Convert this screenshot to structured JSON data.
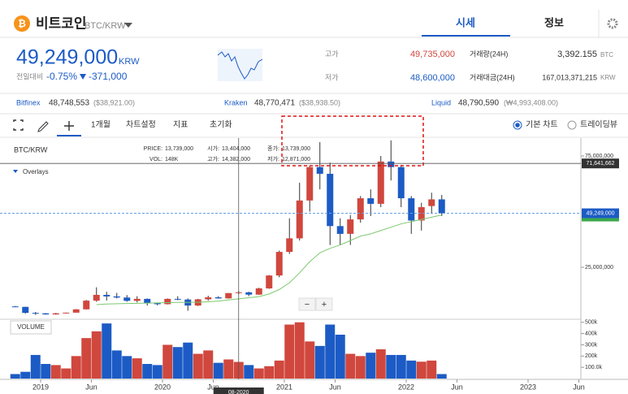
{
  "header": {
    "coin": "비트코인",
    "pair": "BTC/KRW",
    "tabs": [
      "시세",
      "정보"
    ]
  },
  "summary": {
    "price": "49,249,000",
    "unit": "KRW",
    "change_label": "전일대비",
    "change_pct": "-0.75%",
    "change_amt": "-371,000",
    "stats": [
      {
        "label": "고가",
        "value": "49,735,000"
      },
      {
        "label": "저가",
        "value": "48,600,000"
      },
      {
        "label": "거래량(24H)",
        "value": "3,392.155",
        "unit": "BTC"
      },
      {
        "label": "거래대금(24H)",
        "value": "167,013,371,215",
        "unit": "KRW"
      }
    ]
  },
  "exchanges": [
    {
      "name": "Bitfinex",
      "price": "48,748,553",
      "usd": "($38,921.00)"
    },
    {
      "name": "Kraken",
      "price": "48,770,471",
      "usd": "($38,938.50)"
    },
    {
      "name": "Liquid",
      "price": "48,790,590",
      "usd": "(₩4,993,408.00)"
    }
  ],
  "toolbar": {
    "items": [
      "1개월",
      "차트설정",
      "지표",
      "초기화"
    ],
    "modes": [
      "기본 차트",
      "트레이딩뷰"
    ]
  },
  "chart_data": {
    "type": "candlestick",
    "pair": "BTC/KRW",
    "overlays": "Overlays",
    "volume_label": "VOLUME",
    "zoom": [
      "−",
      "+"
    ],
    "x": [
      "2018-10",
      "2018-11",
      "2018-12",
      "2019-01",
      "2019-02",
      "2019-03",
      "2019-04",
      "2019-05",
      "2019-06",
      "2019-07",
      "2019-08",
      "2019-09",
      "2019-10",
      "2019-11",
      "2019-12",
      "2020-01",
      "2020-02",
      "2020-03",
      "2020-04",
      "2020-05",
      "2020-06",
      "2020-07",
      "2020-08",
      "2020-09",
      "2020-10",
      "2020-11",
      "2020-12",
      "2021-01",
      "2021-02",
      "2021-03",
      "2021-04",
      "2021-05",
      "2021-06",
      "2021-07",
      "2021-08",
      "2021-09",
      "2021-10",
      "2021-11",
      "2021-12",
      "2022-01",
      "2022-02",
      "2022-03",
      "2022-04"
    ],
    "open": [
      7400000,
      7200000,
      4500000,
      4300000,
      3800000,
      4300000,
      4600000,
      6100000,
      10000000,
      12600000,
      11900000,
      11400000,
      9900000,
      10800000,
      8900000,
      8400000,
      10800000,
      10500000,
      7800000,
      10600000,
      11500000,
      11000000,
      13404000,
      13739000,
      12700000,
      15500000,
      21300000,
      31900000,
      38000000,
      55000000,
      70000000,
      67000000,
      43500000,
      40000000,
      46500000,
      56000000,
      53500000,
      72500000,
      70000000,
      56000000,
      46000000,
      52500000,
      55500000
    ],
    "high": [
      7600000,
      7300000,
      4900000,
      4400000,
      4500000,
      4600000,
      6200000,
      10300000,
      16000000,
      14000000,
      13500000,
      12500000,
      12000000,
      11000000,
      9200000,
      11000000,
      12000000,
      11000000,
      10800000,
      12200000,
      12000000,
      13400000,
      14382000,
      14000000,
      15800000,
      21500000,
      32500000,
      47000000,
      63000000,
      70500000,
      81200000,
      72000000,
      47000000,
      48500000,
      57000000,
      60000000,
      75000000,
      82000000,
      71000000,
      57000000,
      54000000,
      58500000,
      57500000
    ],
    "low": [
      7100000,
      4200000,
      3600000,
      3700000,
      3700000,
      4200000,
      4600000,
      6000000,
      9500000,
      10000000,
      11000000,
      9500000,
      9200000,
      7800000,
      7900000,
      8300000,
      10200000,
      5500000,
      7600000,
      10000000,
      10900000,
      10900000,
      12871000,
      12000000,
      12600000,
      15300000,
      20500000,
      31000000,
      37000000,
      50000000,
      60000000,
      35000000,
      35000000,
      35000000,
      45000000,
      48000000,
      52000000,
      64000000,
      52000000,
      40000000,
      41500000,
      49000000,
      48000000
    ],
    "close": [
      7200000,
      4500000,
      4300000,
      3800000,
      4300000,
      4600000,
      6100000,
      10000000,
      12600000,
      11900000,
      11400000,
      9900000,
      10800000,
      8900000,
      8400000,
      10800000,
      10500000,
      7800000,
      10600000,
      11500000,
      11000000,
      13400000,
      13739000,
      12700000,
      15500000,
      21300000,
      31900000,
      38000000,
      55000000,
      70000000,
      67000000,
      43500000,
      40000000,
      46500000,
      56000000,
      53500000,
      72500000,
      70000000,
      56000000,
      46000000,
      52000000,
      55500000,
      49249000
    ],
    "volume": [
      40000,
      60000,
      210000,
      130000,
      120000,
      90000,
      200000,
      360000,
      420000,
      490000,
      250000,
      200000,
      180000,
      130000,
      120000,
      300000,
      280000,
      320000,
      220000,
      250000,
      140000,
      170000,
      148000,
      120000,
      90000,
      110000,
      160000,
      480000,
      500000,
      330000,
      290000,
      480000,
      390000,
      220000,
      200000,
      230000,
      260000,
      210000,
      210000,
      160000,
      150000,
      160000,
      40000
    ],
    "ma": [
      null,
      null,
      null,
      null,
      null,
      null,
      null,
      null,
      8200000,
      8500000,
      8600000,
      8700000,
      8800000,
      8900000,
      9000000,
      9100000,
      9200000,
      9200000,
      9300000,
      9500000,
      9800000,
      10300000,
      10800000,
      11300000,
      11800000,
      13000000,
      15000000,
      18000000,
      22500000,
      27500000,
      31500000,
      33500000,
      35000000,
      37000000,
      39000000,
      40000000,
      41500000,
      43000000,
      44500000,
      45500000,
      46500000,
      47500000,
      48500000
    ],
    "up_color": "#d0473d",
    "down_color": "#1c5bc5",
    "ma_color": "#7cc96f",
    "ylim": [
      2000000,
      82300000
    ],
    "yticks": [
      {
        "value": 25000000,
        "label": "25,000,000"
      },
      {
        "value": 75000000,
        "label": "75,000,000"
      }
    ],
    "vlim": [
      0,
      520000
    ],
    "vticks": [
      {
        "value": 500000,
        "label": "500k"
      },
      {
        "value": 400000,
        "label": "400k"
      },
      {
        "value": 300000,
        "label": "300k"
      },
      {
        "value": 200000,
        "label": "200k"
      },
      {
        "value": 100000,
        "label": "100.0k"
      }
    ],
    "xticks": [
      {
        "value": "2019-01",
        "label": "2019"
      },
      {
        "value": "2019-06",
        "label": "Jun"
      },
      {
        "value": "2020-01",
        "label": "2020"
      },
      {
        "value": "2020-06",
        "label": "Jun"
      },
      {
        "value": "2021-01",
        "label": "2021"
      },
      {
        "value": "2021-06",
        "label": "Jun"
      },
      {
        "value": "2022-01",
        "label": "2022"
      },
      {
        "value": "2022-06",
        "label": "Jun"
      },
      {
        "value": "2023-01",
        "label": "2023"
      },
      {
        "value": "2023-06",
        "label": "Jun"
      }
    ],
    "last": {
      "value": 49249000,
      "label": "49,249,000"
    },
    "crosshair": {
      "x": "2020-08",
      "label": "08-2020",
      "y": 71641662,
      "y_label": "71,641,662",
      "fields": [
        {
          "name": "PRICE:",
          "value": "13,739,000"
        },
        {
          "name": "VOL:",
          "value": "148K"
        },
        {
          "name": "시가:",
          "value": "13,404,000"
        },
        {
          "name": "고가:",
          "value": "14,382,000"
        },
        {
          "name": "종가:",
          "value": "13,739,000"
        },
        {
          "name": "저가:",
          "value": "12,871,000"
        }
      ]
    }
  }
}
